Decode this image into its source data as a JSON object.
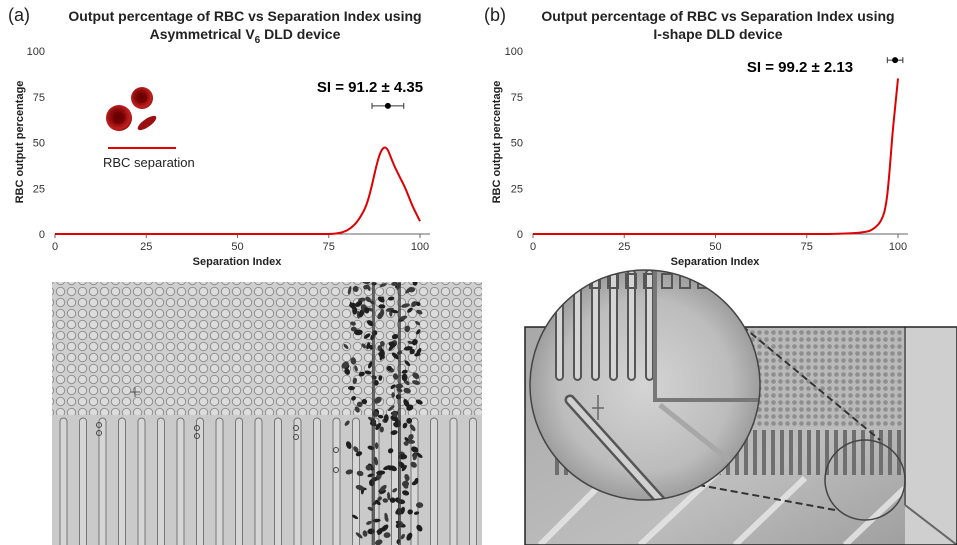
{
  "figure": {
    "panel_a_label": "(a)",
    "panel_b_label": "(b)"
  },
  "chart_data": [
    {
      "type": "line",
      "title_line1": "Output percentage of RBC vs Separation Index using",
      "title_line2_prefix": "Asymmetrical V",
      "title_line2_sub": "6",
      "title_line2_suffix": " DLD device",
      "xlabel": "Separation Index",
      "ylabel": "RBC output percentage",
      "xlim": [
        0,
        100
      ],
      "ylim": [
        0,
        100
      ],
      "xticks": [
        0,
        25,
        50,
        75,
        100
      ],
      "yticks": [
        0,
        25,
        50,
        75,
        100
      ],
      "grid": false,
      "series": [
        {
          "color": "#e00000",
          "x": [
            0,
            50,
            75,
            77,
            79,
            81,
            83,
            85,
            86,
            87,
            88,
            89,
            90,
            91,
            92,
            93,
            94,
            95,
            96,
            97,
            98,
            99,
            100
          ],
          "y": [
            0,
            0,
            0,
            0.2,
            1,
            3,
            7,
            14,
            20,
            28,
            37,
            44,
            47.5,
            47,
            42,
            37,
            33,
            29,
            25,
            20,
            15,
            11,
            7
          ]
        }
      ],
      "annotation": {
        "text": "SI = 91.2 ± 4.35",
        "x": 91.2,
        "y": 70,
        "err": 4.35
      },
      "legend": {
        "label": "RBC separation",
        "color": "#e00000",
        "placement": "left",
        "icon": "red-blood-cells-icon"
      }
    },
    {
      "type": "line",
      "title_line1": "Output percentage of RBC vs Separation Index using",
      "title_line2_prefix": "I-shape DLD device",
      "title_line2_sub": "",
      "title_line2_suffix": "",
      "xlabel": "Separation Index",
      "ylabel": "RBC output percentage",
      "xlim": [
        0,
        100
      ],
      "ylim": [
        0,
        100
      ],
      "xticks": [
        0,
        25,
        50,
        75,
        100
      ],
      "yticks": [
        0,
        25,
        50,
        75,
        100
      ],
      "grid": false,
      "series": [
        {
          "color": "#e00000",
          "x": [
            0,
            50,
            80,
            85,
            88,
            90,
            92,
            93,
            94,
            95,
            96,
            96.5,
            97,
            97.5,
            98,
            98.5,
            99,
            99.5,
            100
          ],
          "y": [
            0,
            0,
            0,
            0.2,
            0.5,
            0.8,
            1.5,
            2.5,
            4,
            6,
            10,
            14,
            20,
            30,
            42,
            55,
            65,
            75,
            85
          ]
        }
      ],
      "annotation": {
        "text": "SI = 99.2 ± 2.13",
        "x": 99.2,
        "y": 95,
        "err": 2.13
      }
    }
  ],
  "micrographs": {
    "left": "dld-pillar-array-micrograph",
    "right": "i-shape-dld-micrograph-with-zoom",
    "magnifier_icon": "magnifier-circle-icon"
  }
}
